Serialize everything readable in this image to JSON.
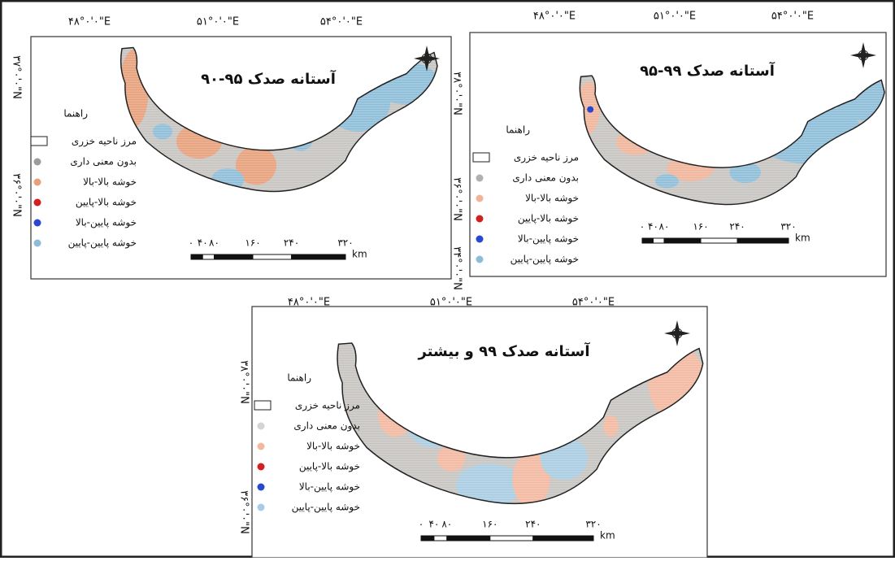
{
  "panels": [
    {
      "title": "آستانه صدک ۹۵-۹۰",
      "top_labels": [
        "۴۸°۰'۰\"E",
        "۵۱°۰'۰\"E",
        "۵۴°۰'۰\"E"
      ],
      "side_labels": [
        "۳۷°۰'۰\"N",
        "۳۶°۰'۰\"N"
      ],
      "legend_title": "راهنما",
      "legend": [
        {
          "label": "مرز ناحیه خزری"
        },
        {
          "label": "بدون معنی داری",
          "color": "#9c9c9c"
        },
        {
          "label": "خوشه بالا-بالا",
          "color": "#e6a07a"
        },
        {
          "label": "خوشه بالا-پایین",
          "color": "#d21f1f"
        },
        {
          "label": "خوشه پایین-بالا",
          "color": "#2848d0"
        },
        {
          "label": "خوشه پایین-پایین",
          "color": "#8cbcd8"
        }
      ],
      "scale_labels": [
        "۰",
        "۴۰",
        "۸۰",
        "۱۶۰",
        "۲۴۰",
        "۳۲۰"
      ],
      "scale_unit": "km"
    },
    {
      "title": "آستانه صدک ۹۹-۹۵",
      "top_labels": [
        "۴۸°۰'۰\"E",
        "۵۱°۰'۰\"E",
        "۵۴°۰'۰\"E"
      ],
      "side_labels": [
        "۳۸°۰'۰\"N",
        "۳۶°۰'۰\"N",
        "۳۴°۰'۰\"N"
      ],
      "legend_title": "راهنما",
      "legend": [
        {
          "label": "مرز ناحیه خزری"
        },
        {
          "label": "بدون معنی داری",
          "color": "#b0b0b0"
        },
        {
          "label": "خوشه بالا-بالا",
          "color": "#f0b49a"
        },
        {
          "label": "خوشه بالا-پایین",
          "color": "#d21f1f"
        },
        {
          "label": "خوشه پایین-بالا",
          "color": "#2848d0"
        },
        {
          "label": "خوشه پایین-پایین",
          "color": "#8cbcd8"
        }
      ],
      "scale_labels": [
        "۰",
        "۴۰",
        "۸۰",
        "۱۶۰",
        "۲۴۰",
        "۳۲۰"
      ],
      "scale_unit": "km"
    },
    {
      "title": "آستانه صدک ۹۹ و بیشتر",
      "top_labels": [
        "۴۸°۰'۰\"E",
        "۵۱°۰'۰\"E",
        "۵۴°۰'۰\"E"
      ],
      "side_labels": [
        "۳۸°۰'۰\"N",
        "۳۶°۰'۰\"N"
      ],
      "legend_title": "راهنما",
      "legend": [
        {
          "label": "مرز ناحیه خزری"
        },
        {
          "label": "بدون معنی داری",
          "color": "#d4d4d4"
        },
        {
          "label": "خوشه بالا-بالا",
          "color": "#f2b8a0"
        },
        {
          "label": "خوشه بالا-پایین",
          "color": "#d21f1f"
        },
        {
          "label": "خوشه پایین-بالا",
          "color": "#2848d0"
        },
        {
          "label": "خوشه پایین-پایین",
          "color": "#a8cce2"
        }
      ],
      "scale_labels": [
        "۰",
        "۴۰",
        "۸۰",
        "۱۶۰",
        "۲۴۰",
        "۳۲۰"
      ],
      "scale_unit": "km"
    }
  ]
}
